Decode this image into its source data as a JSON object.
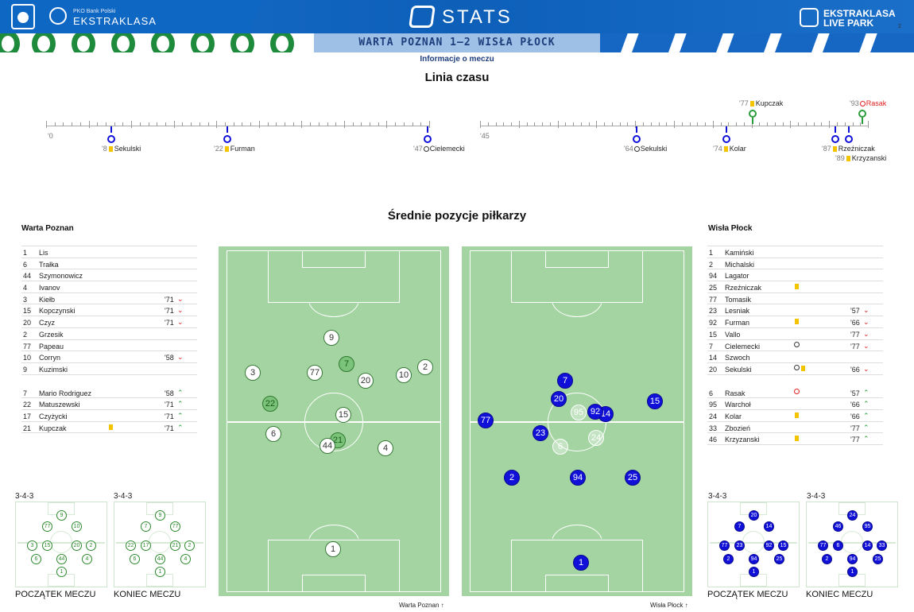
{
  "header": {
    "bank_label": "PKO Bank Polski",
    "league_label": "EKSTRAKLASA",
    "stats_label": "STATS",
    "right_logo_line1": "EKSTRAKLASA",
    "right_logo_line2": "LIVE PARK",
    "page_number": "2"
  },
  "match_title": "WARTA POZNAN 1–2 WISŁA PŁOCK",
  "info_label": "Informacje o meczu",
  "timeline": {
    "title": "Linia czasu",
    "first_half_start": "'0",
    "second_half_start": "'45",
    "events": [
      {
        "minute": "'8",
        "player": "Sekulski",
        "kind": "yellow"
      },
      {
        "minute": "'22",
        "player": "Furman",
        "kind": "yellow"
      },
      {
        "minute": "'47",
        "player": "Cielemecki",
        "kind": "goal"
      },
      {
        "minute": "'64",
        "player": "Sekulski",
        "kind": "goal"
      },
      {
        "minute": "'74",
        "player": "Kolar",
        "kind": "yellow"
      },
      {
        "minute": "'87",
        "player": "Rzeźniczak",
        "kind": "yellow"
      },
      {
        "minute": "'89",
        "player": "Krzyzanski",
        "kind": "yellow"
      },
      {
        "minute": "'77",
        "player": "Kupczak",
        "kind": "yellow"
      },
      {
        "minute": "'93",
        "player": "Rasak",
        "kind": "own-goal"
      }
    ]
  },
  "positions_title": "Średnie pozycje piłkarzy",
  "home": {
    "name": "Warta Poznan",
    "starters": [
      {
        "n": "1",
        "name": "Lis",
        "min": "",
        "arrow": ""
      },
      {
        "n": "6",
        "name": "Trałka",
        "min": "",
        "arrow": ""
      },
      {
        "n": "44",
        "name": "Szymonowicz",
        "min": "",
        "arrow": ""
      },
      {
        "n": "4",
        "name": "Ivanov",
        "min": "",
        "arrow": ""
      },
      {
        "n": "3",
        "name": "Kiełb",
        "min": "'71",
        "arrow": "down"
      },
      {
        "n": "15",
        "name": "Kopczynski",
        "min": "'71",
        "arrow": "down"
      },
      {
        "n": "20",
        "name": "Czyz",
        "min": "'71",
        "arrow": "down"
      },
      {
        "n": "2",
        "name": "Grzesik",
        "min": "",
        "arrow": ""
      },
      {
        "n": "77",
        "name": "Papeau",
        "min": "",
        "arrow": ""
      },
      {
        "n": "10",
        "name": "Corryn",
        "min": "'58",
        "arrow": "down"
      },
      {
        "n": "9",
        "name": "Kuzimski",
        "min": "",
        "arrow": ""
      }
    ],
    "subs": [
      {
        "n": "7",
        "name": "Mario Rodriguez",
        "min": "'58",
        "arrow": "up"
      },
      {
        "n": "22",
        "name": "Matuszewski",
        "min": "'71",
        "arrow": "up"
      },
      {
        "n": "17",
        "name": "Czyżycki",
        "min": "'71",
        "arrow": "up"
      },
      {
        "n": "21",
        "name": "Kupczak",
        "min": "'71",
        "arrow": "up",
        "card": "yellow"
      }
    ],
    "field_caption": "Warta Poznan",
    "formation_start": "3-4-3",
    "formation_end": "3-4-3",
    "caption_start": "POCZĄTEK MECZU",
    "caption_end": "KONIEC MECZU"
  },
  "away": {
    "name": "Wisła Płock",
    "starters": [
      {
        "n": "1",
        "name": "Kamiński",
        "min": "",
        "arrow": ""
      },
      {
        "n": "2",
        "name": "Michalski",
        "min": "",
        "arrow": ""
      },
      {
        "n": "94",
        "name": "Lagator",
        "min": "",
        "arrow": ""
      },
      {
        "n": "25",
        "name": "Rzeźniczak",
        "min": "",
        "arrow": "",
        "card": "yellow"
      },
      {
        "n": "77",
        "name": "Tomasik",
        "min": "",
        "arrow": ""
      },
      {
        "n": "23",
        "name": "Lesniak",
        "min": "'57",
        "arrow": "down"
      },
      {
        "n": "92",
        "name": "Furman",
        "min": "'66",
        "arrow": "down",
        "card": "yellow"
      },
      {
        "n": "15",
        "name": "Vallo",
        "min": "'77",
        "arrow": "down"
      },
      {
        "n": "7",
        "name": "Cielemecki",
        "min": "'77",
        "arrow": "down",
        "card": "goal"
      },
      {
        "n": "14",
        "name": "Szwoch",
        "min": "",
        "arrow": ""
      },
      {
        "n": "20",
        "name": "Sekulski",
        "min": "'66",
        "arrow": "down",
        "card": "goal-yellow"
      }
    ],
    "subs": [
      {
        "n": "6",
        "name": "Rasak",
        "min": "'57",
        "arrow": "up",
        "card": "own-goal"
      },
      {
        "n": "95",
        "name": "Warchoł",
        "min": "'66",
        "arrow": "up"
      },
      {
        "n": "24",
        "name": "Kolar",
        "min": "'66",
        "arrow": "up",
        "card": "yellow"
      },
      {
        "n": "33",
        "name": "Zbozień",
        "min": "'77",
        "arrow": "up"
      },
      {
        "n": "46",
        "name": "Krzyzanski",
        "min": "'77",
        "arrow": "up",
        "card": "yellow"
      }
    ],
    "field_caption": "Wisła Płock",
    "formation_start": "3-4-3",
    "formation_end": "3-4-3",
    "caption_start": "POCZĄTEK MECZU",
    "caption_end": "KONIEC MECZU"
  },
  "home_field_players": [
    "9",
    "3",
    "77",
    "7",
    "10",
    "2",
    "20",
    "22",
    "15",
    "6",
    "21",
    "44",
    "4",
    "1"
  ],
  "away_field_players": [
    "7",
    "20",
    "14",
    "92",
    "15",
    "77",
    "95",
    "23",
    "24",
    "6",
    "2",
    "94",
    "25",
    "1"
  ],
  "home_mini_start": [
    "9",
    "77",
    "10",
    "3",
    "15",
    "20",
    "2",
    "6",
    "44",
    "4",
    "1"
  ],
  "home_mini_end": [
    "9",
    "7",
    "77",
    "22",
    "17",
    "21",
    "2",
    "6",
    "44",
    "4",
    "1"
  ],
  "away_mini_start": [
    "20",
    "7",
    "14",
    "77",
    "23",
    "92",
    "15",
    "2",
    "94",
    "25",
    "1"
  ],
  "away_mini_end": [
    "24",
    "46",
    "95",
    "77",
    "6",
    "14",
    "33",
    "2",
    "94",
    "25",
    "1"
  ],
  "colors": {
    "home": "#2d8a2d",
    "away": "#1010d8",
    "yellow": "#f4c400",
    "pitch": "#a4d4a2",
    "brand": "#0f67c4"
  }
}
